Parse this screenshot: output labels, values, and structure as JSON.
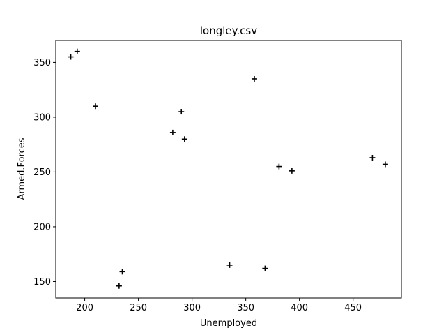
{
  "chart_data": {
    "type": "scatter",
    "title": "longley.csv",
    "xlabel": "Unemployed",
    "ylabel": "Armed.Forces",
    "xlim": [
      173,
      495
    ],
    "ylim": [
      135,
      370
    ],
    "xticks": [
      200,
      250,
      300,
      350,
      400,
      450
    ],
    "yticks": [
      150,
      200,
      250,
      300,
      350
    ],
    "grid": false,
    "marker": "plus",
    "marker_color": "#000000",
    "series": [
      {
        "x": [
          187,
          193,
          210,
          282,
          290,
          293,
          232,
          235,
          335,
          358,
          368,
          381,
          393,
          468,
          480
        ],
        "y": [
          355,
          360,
          310,
          286,
          305,
          280,
          146,
          159,
          165,
          335,
          162,
          255,
          251,
          263,
          257
        ]
      }
    ]
  }
}
